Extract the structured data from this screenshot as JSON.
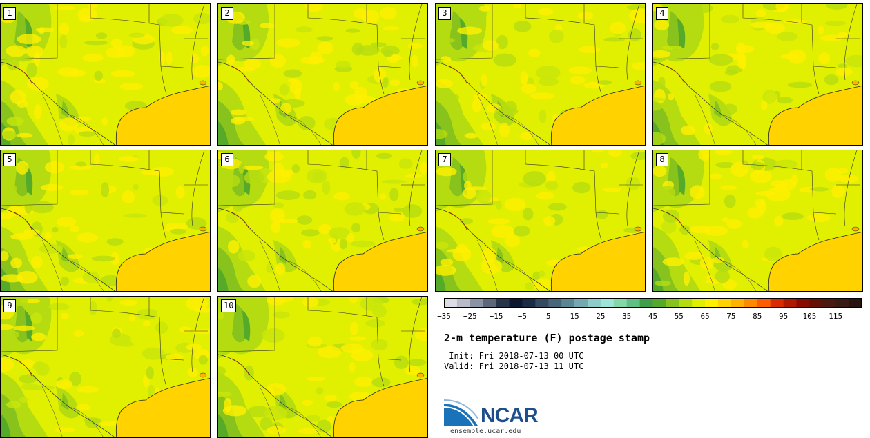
{
  "panels": [
    {
      "label": "1"
    },
    {
      "label": "2"
    },
    {
      "label": "3"
    },
    {
      "label": "4"
    },
    {
      "label": "5"
    },
    {
      "label": "6"
    },
    {
      "label": "7"
    },
    {
      "label": "8"
    },
    {
      "label": "9"
    },
    {
      "label": "10"
    }
  ],
  "colorbar": {
    "ticks": [
      "−35",
      "−25",
      "−15",
      "−5",
      "5",
      "15",
      "25",
      "35",
      "45",
      "55",
      "65",
      "75",
      "85",
      "95",
      "105",
      "115"
    ],
    "min": -35,
    "max": 125,
    "step": 5,
    "colors": [
      "#dcdce6",
      "#b7bcc8",
      "#8a93a3",
      "#5c6779",
      "#28344a",
      "#0c1830",
      "#1a2b45",
      "#344a63",
      "#486679",
      "#5a8593",
      "#74a8b0",
      "#8ccdc9",
      "#9be6d8",
      "#82d8a8",
      "#5fc084",
      "#3f9f48",
      "#55aa2a",
      "#87c31c",
      "#b5dc10",
      "#e0f000",
      "#fff000",
      "#ffd200",
      "#ffb300",
      "#ff8a00",
      "#ff5b00",
      "#d92a00",
      "#b01800",
      "#8a0c00",
      "#661005",
      "#4a1a10",
      "#3a1a14",
      "#2a140f"
    ]
  },
  "title": "2-m temperature (F) postage stamp",
  "init_text": " Init: Fri 2018-07-13 00 UTC",
  "valid_text": "Valid: Fri 2018-07-13 11 UTC",
  "logo": {
    "text": "NCAR",
    "url": "ensemble.ucar.edu"
  }
}
